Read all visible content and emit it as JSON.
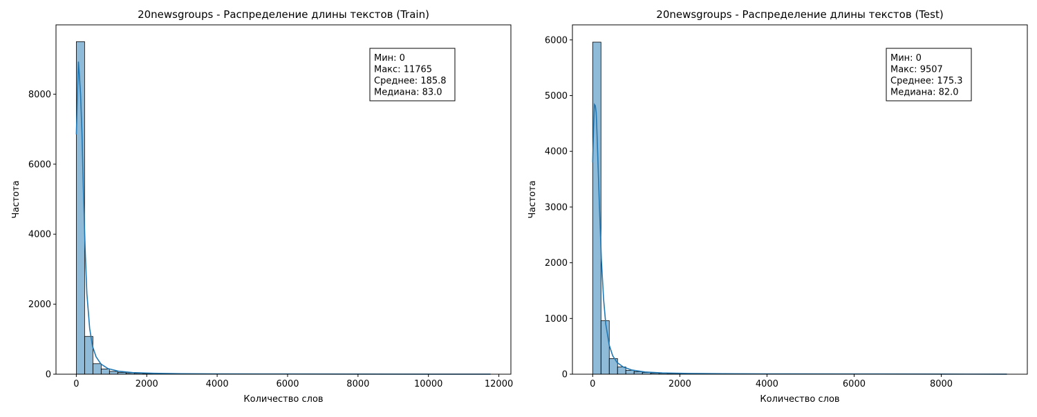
{
  "chart_data": [
    {
      "type": "histogram",
      "title": "20newsgroups - Распределение длины текстов (Train)",
      "xlabel": "Количество слов",
      "ylabel": "Частота",
      "xlim": [
        -577,
        12342
      ],
      "ylim": [
        0,
        9980
      ],
      "xticks": [
        0,
        2000,
        4000,
        6000,
        8000,
        10000,
        12000
      ],
      "xtick_labels": [
        "0",
        "2000",
        "4000",
        "6000",
        "8000",
        "10000",
        "12000"
      ],
      "yticks": [
        0,
        2000,
        4000,
        6000,
        8000
      ],
      "ytick_labels": [
        "0",
        "2000",
        "4000",
        "6000",
        "8000"
      ],
      "bin_width": 235.3,
      "bins": [
        {
          "x0": 0,
          "value": 9500
        },
        {
          "x0": 235.3,
          "value": 1080
        },
        {
          "x0": 470.6,
          "value": 300
        },
        {
          "x0": 705.9,
          "value": 150
        },
        {
          "x0": 941.2,
          "value": 80
        },
        {
          "x0": 1176.5,
          "value": 50
        },
        {
          "x0": 1411.8,
          "value": 35
        },
        {
          "x0": 1647.1,
          "value": 25
        },
        {
          "x0": 1882.4,
          "value": 18
        },
        {
          "x0": 2117.7,
          "value": 12
        },
        {
          "x0": 2353.0,
          "value": 10
        },
        {
          "x0": 2588.3,
          "value": 8
        }
      ],
      "kde": {
        "x": [
          0,
          30,
          60,
          90,
          120,
          160,
          200,
          250,
          300,
          380,
          460,
          560,
          700,
          900,
          1200,
          1600,
          2200,
          3000,
          4000,
          6000,
          8000,
          10000,
          11765
        ],
        "y": [
          6850,
          7900,
          8930,
          8500,
          8000,
          6900,
          5300,
          3600,
          2300,
          1300,
          800,
          500,
          290,
          160,
          85,
          45,
          25,
          15,
          10,
          6,
          4,
          2,
          1
        ]
      },
      "stats": [
        "Мин: 0",
        "Макс: 11765",
        "Среднее: 185.8",
        "Медиана: 83.0"
      ],
      "grid": false
    },
    {
      "type": "histogram",
      "title": "20newsgroups - Распределение длины текстов (Test)",
      "xlabel": "Количество слов",
      "ylabel": "Частота",
      "xlim": [
        -465,
        9975
      ],
      "ylim": [
        0,
        6270
      ],
      "xticks": [
        0,
        2000,
        4000,
        6000,
        8000
      ],
      "xtick_labels": [
        "0",
        "2000",
        "4000",
        "6000",
        "8000"
      ],
      "yticks": [
        0,
        1000,
        2000,
        3000,
        4000,
        5000,
        6000
      ],
      "ytick_labels": [
        "0",
        "1000",
        "2000",
        "3000",
        "4000",
        "5000",
        "6000"
      ],
      "bin_width": 190.1,
      "bins": [
        {
          "x0": 0,
          "value": 5960
        },
        {
          "x0": 190.1,
          "value": 960
        },
        {
          "x0": 380.2,
          "value": 280
        },
        {
          "x0": 570.3,
          "value": 130
        },
        {
          "x0": 760.4,
          "value": 70
        },
        {
          "x0": 950.5,
          "value": 45
        },
        {
          "x0": 1140.6,
          "value": 30
        },
        {
          "x0": 1330.7,
          "value": 20
        },
        {
          "x0": 1520.8,
          "value": 15
        },
        {
          "x0": 1710.9,
          "value": 12
        },
        {
          "x0": 1901.0,
          "value": 9
        },
        {
          "x0": 2091.1,
          "value": 7
        }
      ],
      "kde": {
        "x": [
          0,
          20,
          40,
          60,
          80,
          100,
          130,
          160,
          200,
          250,
          300,
          380,
          460,
          560,
          700,
          900,
          1200,
          1600,
          2200,
          3000,
          4000,
          6000,
          8000,
          9507
        ],
        "y": [
          3800,
          4400,
          4840,
          4820,
          4700,
          4300,
          3600,
          2900,
          2050,
          1350,
          900,
          520,
          330,
          210,
          130,
          75,
          40,
          22,
          14,
          9,
          6,
          4,
          2,
          1
        ]
      },
      "stats": [
        "Мин: 0",
        "Макс: 9507",
        "Среднее: 175.3",
        "Медиана: 82.0"
      ],
      "grid": false
    }
  ]
}
